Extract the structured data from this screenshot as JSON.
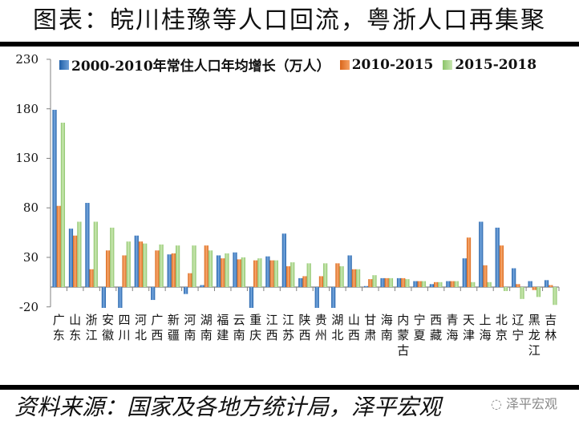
{
  "title": "图表：皖川桂豫等人口回流，粤浙人口再集聚",
  "source": "资料来源：国家及各地方统计局，泽平宏观",
  "watermark": "泽平宏观",
  "colors": {
    "s1": "#2E75B6",
    "s2": "#ED7D31",
    "s3": "#A9D18E"
  },
  "chart_data": {
    "type": "bar",
    "title": "皖川桂豫等人口回流，粤浙人口再集聚",
    "xlabel": "",
    "ylabel": "",
    "ylim": [
      -20,
      230
    ],
    "yticks": [
      230,
      180,
      130,
      80,
      30,
      -20
    ],
    "grid": false,
    "legend_position": "top",
    "categories": [
      "广东",
      "山东",
      "浙江",
      "安徽",
      "四川",
      "河北",
      "广西",
      "新疆",
      "河南",
      "湖南",
      "福建",
      "云南",
      "重庆",
      "江西",
      "江苏",
      "陕西",
      "贵州",
      "湖北",
      "山西",
      "甘肃",
      "海南",
      "内蒙古",
      "宁夏",
      "西藏",
      "青海",
      "天津",
      "上海",
      "北京",
      "辽宁",
      "黑龙江",
      "吉林"
    ],
    "series": [
      {
        "name": "2000-2010年常住人口年均增长（万人）",
        "values": [
          179,
          59,
          85,
          -21,
          -21,
          52,
          -13,
          33,
          -7,
          2,
          32,
          35,
          -21,
          31,
          54,
          9,
          -21,
          -21,
          32,
          1,
          9,
          9,
          6,
          3,
          6,
          29,
          66,
          60,
          19,
          6,
          7
        ]
      },
      {
        "name": "2010-2015",
        "values": [
          82,
          52,
          18,
          37,
          32,
          46,
          37,
          34,
          14,
          42,
          29,
          28,
          27,
          27,
          21,
          11,
          11,
          24,
          18,
          8,
          9,
          9,
          6,
          5,
          6,
          50,
          22,
          42,
          3,
          -3,
          2
        ]
      },
      {
        "name": "2015-2018",
        "values": [
          166,
          66,
          66,
          60,
          46,
          44,
          43,
          42,
          42,
          37,
          34,
          30,
          29,
          27,
          25,
          24,
          24,
          21,
          18,
          12,
          9,
          8,
          6,
          5,
          6,
          5,
          5,
          -4,
          -12,
          -10,
          -18
        ]
      }
    ]
  },
  "legend": [
    {
      "label": "2000-2010年常住人口年均增长（万人）"
    },
    {
      "label": "2010-2015"
    },
    {
      "label": "2015-2018"
    }
  ]
}
